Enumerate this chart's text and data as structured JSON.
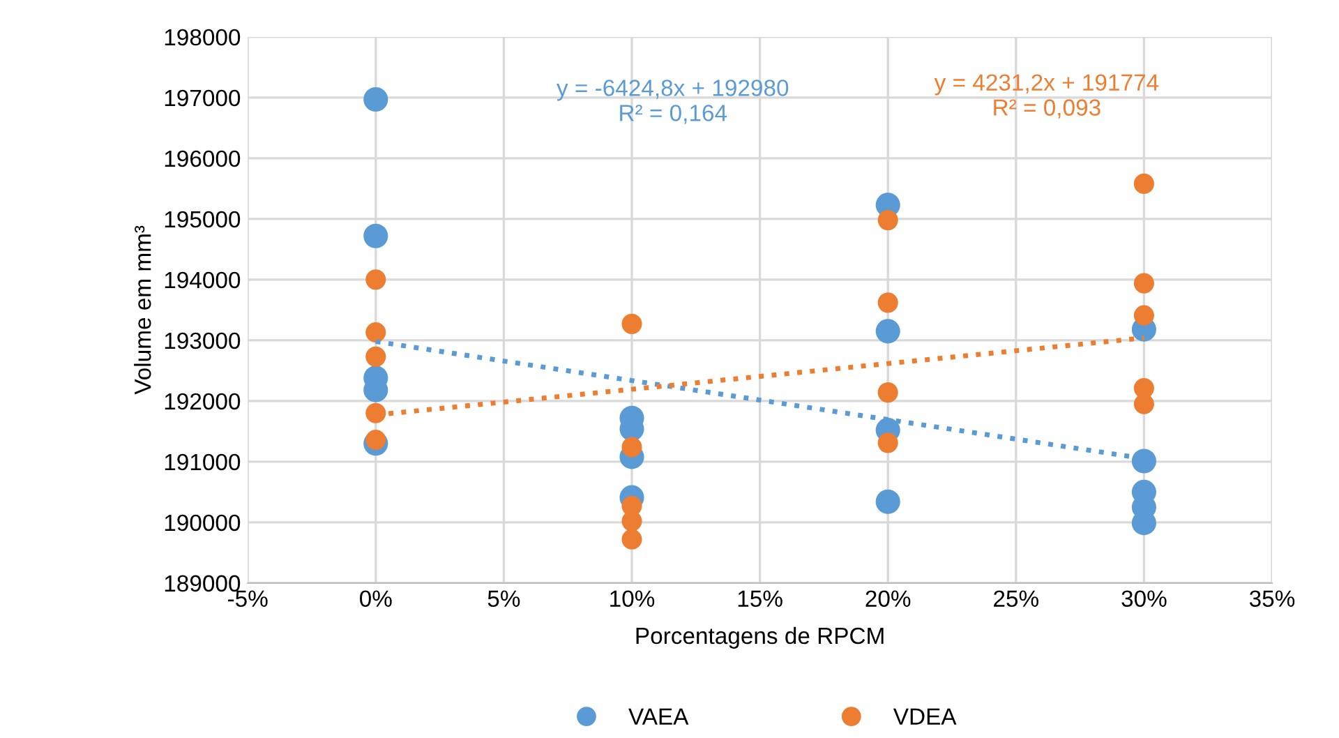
{
  "chart_data": {
    "type": "scatter",
    "xlabel": "Porcentagens de RPCM",
    "ylabel": "Volume em mm³",
    "xlim": [
      -0.05,
      0.35
    ],
    "xticks": [
      {
        "value": -0.05,
        "label": "-5%"
      },
      {
        "value": 0,
        "label": "0%"
      },
      {
        "value": 0.05,
        "label": "5%"
      },
      {
        "value": 0.1,
        "label": "10%"
      },
      {
        "value": 0.15,
        "label": "15%"
      },
      {
        "value": 0.2,
        "label": "20%"
      },
      {
        "value": 0.25,
        "label": "25%"
      },
      {
        "value": 0.3,
        "label": "30%"
      },
      {
        "value": 0.35,
        "label": "35%"
      }
    ],
    "ylim": [
      189000,
      198000
    ],
    "yticks": [
      189000,
      190000,
      191000,
      192000,
      193000,
      194000,
      195000,
      196000,
      197000,
      198000
    ],
    "grid": true,
    "legend": "bottom",
    "series": [
      {
        "name": "VAEA",
        "color": "#5b9bd5",
        "marker": "circle",
        "x": [
          0,
          0,
          0,
          0,
          0,
          0.1,
          0.1,
          0.1,
          0.1,
          0.2,
          0.2,
          0.2,
          0.2,
          0.3,
          0.3,
          0.3,
          0.3,
          0.3
        ],
        "values": [
          196970,
          194720,
          192380,
          192180,
          191300,
          191720,
          191540,
          191080,
          190410,
          195230,
          193150,
          191520,
          190340,
          193180,
          191010,
          190500,
          190250,
          189990
        ]
      },
      {
        "name": "VDEA",
        "color": "#ed7d31",
        "marker": "circle",
        "x": [
          0,
          0,
          0,
          0,
          0,
          0.1,
          0.1,
          0.1,
          0.1,
          0.1,
          0.2,
          0.2,
          0.2,
          0.2,
          0.3,
          0.3,
          0.3,
          0.3,
          0.3
        ],
        "values": [
          194000,
          193130,
          192730,
          191800,
          191360,
          193270,
          191240,
          190270,
          190020,
          189720,
          194980,
          193620,
          192140,
          191310,
          195580,
          193940,
          193410,
          192210,
          191950
        ]
      },
      {
        "type": "line",
        "line_style": "dotted",
        "color": "#5b9bd5",
        "x": [
          0,
          0.3
        ],
        "values": [
          192980,
          191050
        ]
      },
      {
        "type": "line",
        "line_style": "dotted",
        "color": "#ed7d31",
        "x": [
          0,
          0.3
        ],
        "values": [
          191770,
          193040
        ]
      }
    ],
    "annotations": [
      "y = -6424,8x + 192980\nR² = 0,164",
      "y = 4231,2x + 191774\nR² = 0,093"
    ]
  }
}
